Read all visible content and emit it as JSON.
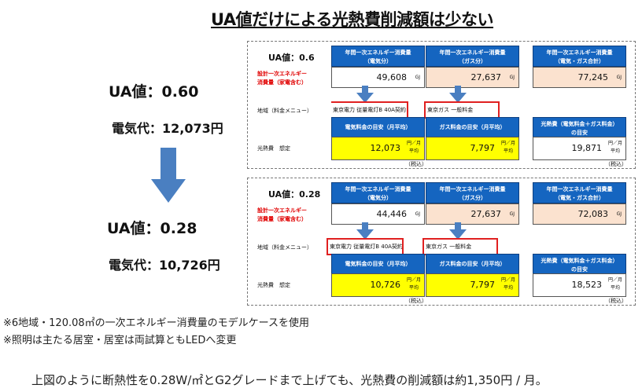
{
  "title": "UA値だけによる光熱費削減額は少ない",
  "left": {
    "ua_before": "UA値：0.60",
    "cost_before": "電気代：12,073円",
    "ua_after": "UA値：0.28",
    "cost_after": "電気代：10,726円"
  },
  "panel_top": {
    "ua": "UA値：0.6",
    "hdr_elec": "年間一次エネルギー消費量\n（電気分）",
    "hdr_gas": "年間一次エネルギー消費量\n（ガス分）",
    "hdr_total": "年間一次エネルギー消費量\n（電気・ガス合計）",
    "design_label": "設計一次エネルギー\n消費量（家電含む）",
    "elec_value": "49,608",
    "gas_value": "27,637",
    "total_value": "77,245",
    "unit_gj": "GJ",
    "area_label": "地域（料金メニュー）",
    "elec_plan": "東京電力 従量電灯B 40A契約",
    "gas_plan": "東京ガス 一般料金",
    "hdr_elec_fee": "電気料金の目安（月平均）",
    "hdr_gas_fee": "ガス料金の目安（月平均）",
    "hdr_total_fee": "光熱費（電気料金＋ガス料金）\nの目安",
    "fee_label": "光熱費　想定",
    "elec_fee": "12,073",
    "gas_fee": "7,797",
    "total_fee": "19,871",
    "month_unit": "円／月\n平均",
    "tax": "（税込）"
  },
  "panel_bottom": {
    "ua": "UA値：0.28",
    "hdr_elec": "年間一次エネルギー消費量\n（電気分）",
    "hdr_gas": "年間一次エネルギー消費量\n（ガス分）",
    "hdr_total": "年間一次エネルギー消費量\n（電気・ガス合計）",
    "design_label": "設計一次エネルギー\n消費量（家電含む）",
    "elec_value": "44,446",
    "gas_value": "27,637",
    "total_value": "72,083",
    "unit_gj": "GJ",
    "area_label": "地域（料金メニュー）",
    "elec_plan": "東京電力 従量電灯B 40A契約",
    "gas_plan": "東京ガス 一般料金",
    "hdr_elec_fee": "電気料金の目安（月平均）",
    "hdr_gas_fee": "ガス料金の目安（月平均）",
    "hdr_total_fee": "光熱費（電気料金＋ガス料金）\nの目安",
    "fee_label": "光熱費　想定",
    "elec_fee": "10,726",
    "gas_fee": "7,797",
    "total_fee": "18,523",
    "month_unit": "円／月\n平均",
    "tax": "（税込）"
  },
  "notes": [
    "※6地域・120.08㎡の一次エネルギー消費量のモデルケースを使用",
    "※照明は主たる居室・居室は両試算ともLEDへ変更"
  ],
  "summary": "上図のように断熱性を0.28W/㎡とG2グレードまで上げても、光熱費の削減額は約1,350円 / 月。",
  "colors": {
    "header_blue": "#1565c0",
    "arrow_blue": "#4a7fc1",
    "yellow": "#ffff00",
    "peach": "#fbe2cf",
    "red": "#e02020"
  }
}
